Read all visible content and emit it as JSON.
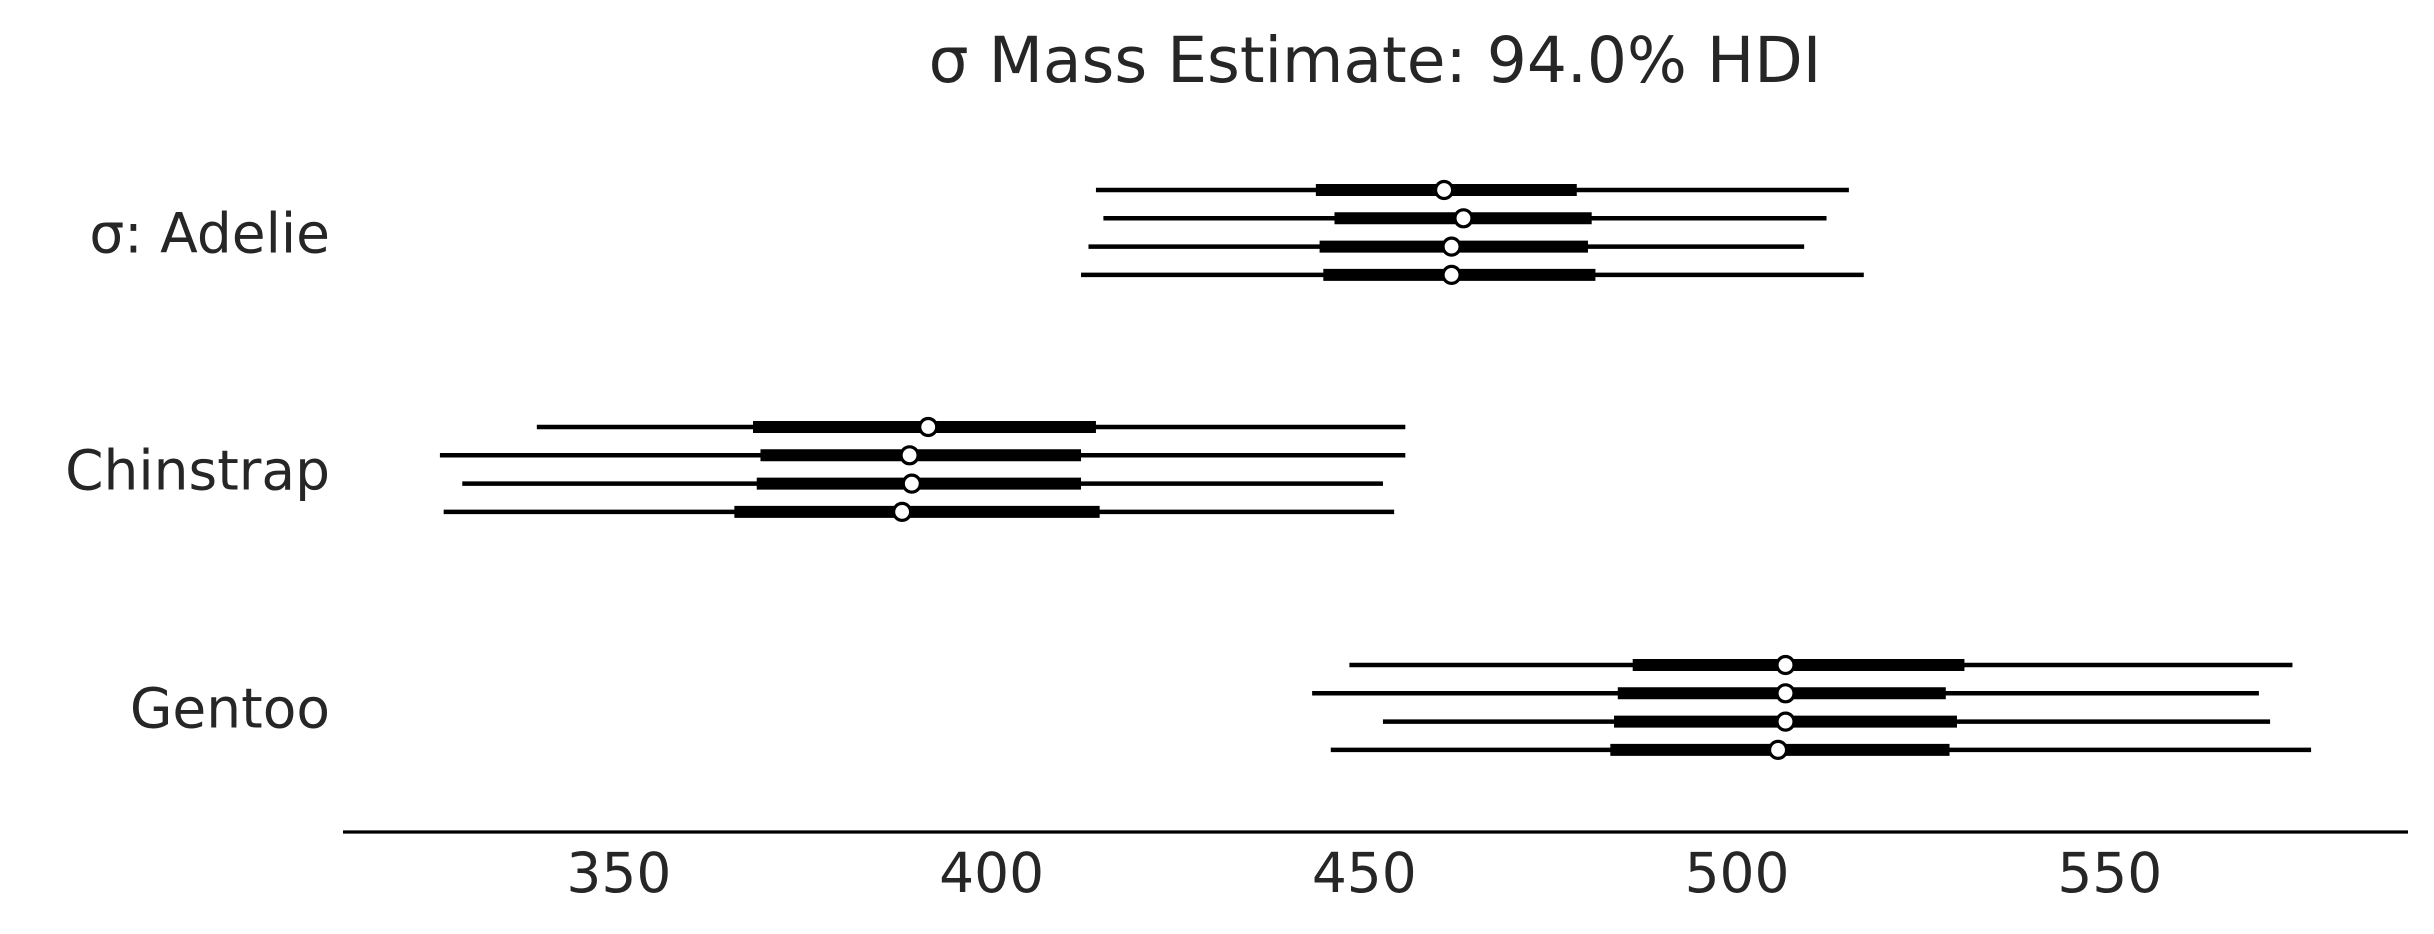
{
  "chart_data": {
    "type": "forest",
    "title": "σ Mass Estimate: 94.0% HDI",
    "xlabel": "",
    "ylabel": "",
    "xlim": [
      313,
      590
    ],
    "xticks": [
      350,
      400,
      450,
      500,
      550
    ],
    "grid": false,
    "legend": "none",
    "hdi_prob": 0.94,
    "groups": [
      {
        "label": "σ: Adelie",
        "chains": [
          {
            "hdi": [
              414.0,
              515.0
            ],
            "iqr": [
              443.5,
              478.5
            ],
            "point": 460.7
          },
          {
            "hdi": [
              415.0,
              512.0
            ],
            "iqr": [
              446.0,
              480.5
            ],
            "point": 463.3
          },
          {
            "hdi": [
              413.0,
              509.0
            ],
            "iqr": [
              444.0,
              480.0
            ],
            "point": 461.7
          },
          {
            "hdi": [
              412.0,
              517.0
            ],
            "iqr": [
              444.5,
              481.0
            ],
            "point": 461.7
          }
        ]
      },
      {
        "label": "Chinstrap",
        "chains": [
          {
            "hdi": [
              339.0,
              455.5
            ],
            "iqr": [
              368.0,
              414.0
            ],
            "point": 391.5
          },
          {
            "hdi": [
              326.0,
              455.5
            ],
            "iqr": [
              369.0,
              412.0
            ],
            "point": 389.0
          },
          {
            "hdi": [
              329.0,
              452.5
            ],
            "iqr": [
              368.5,
              412.0
            ],
            "point": 389.3
          },
          {
            "hdi": [
              326.5,
              454.0
            ],
            "iqr": [
              365.5,
              414.5
            ],
            "point": 388.0
          }
        ]
      },
      {
        "label": "Gentoo",
        "chains": [
          {
            "hdi": [
              448.0,
              574.5
            ],
            "iqr": [
              486.0,
              530.5
            ],
            "point": 506.5
          },
          {
            "hdi": [
              443.0,
              570.0
            ],
            "iqr": [
              484.0,
              528.0
            ],
            "point": 506.5
          },
          {
            "hdi": [
              452.5,
              571.5
            ],
            "iqr": [
              483.5,
              529.5
            ],
            "point": 506.5
          },
          {
            "hdi": [
              445.5,
              577.0
            ],
            "iqr": [
              483.0,
              528.5
            ],
            "point": 505.5
          }
        ]
      }
    ]
  }
}
